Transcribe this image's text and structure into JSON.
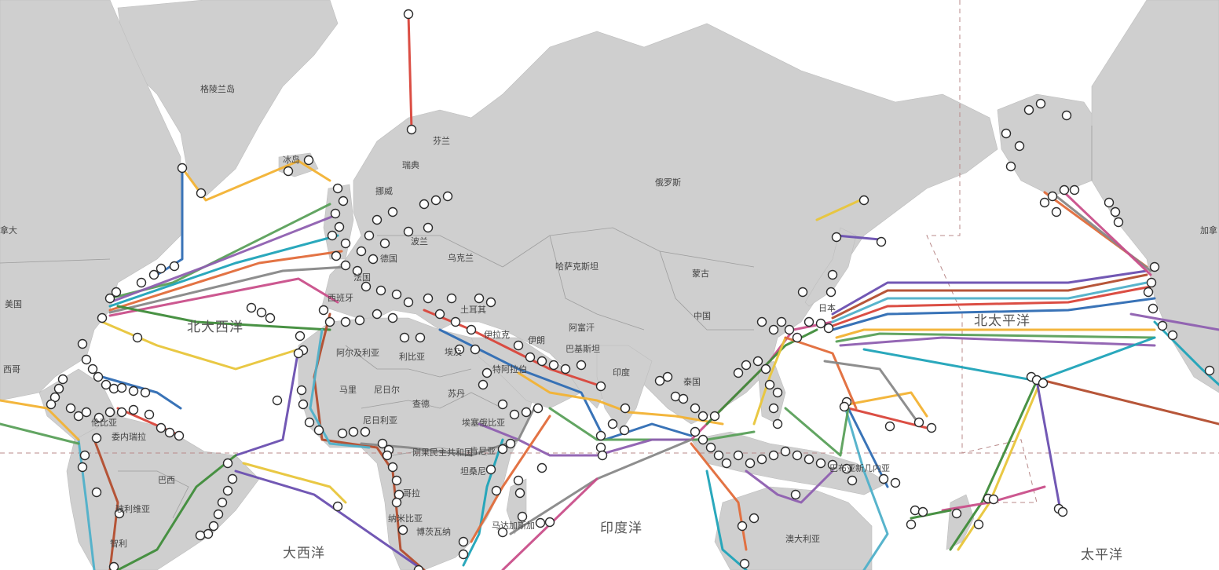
{
  "countries": {
    "greenland": "格陵兰岛",
    "canada_left": "拿大",
    "canada_right": "加拿",
    "usa": "美国",
    "mexico": "西哥",
    "iceland": "冰岛",
    "norway": "挪威",
    "sweden": "瑞典",
    "finland": "芬兰",
    "poland": "波兰",
    "germany": "德国",
    "france": "法国",
    "spain": "西班牙",
    "ukraine": "乌克兰",
    "turkey": "土耳其",
    "russia": "俄罗斯",
    "kazakhstan": "哈萨克斯坦",
    "mongolia": "蒙古",
    "china": "中国",
    "japan": "日本",
    "iran": "伊朗",
    "iraq": "伊拉克",
    "afghanistan": "阿富汗",
    "pakistan": "巴基斯坦",
    "india": "印度",
    "thailand": "泰国",
    "saudi": "特阿拉伯",
    "algeria": "阿尔及利亚",
    "libya": "利比亚",
    "egypt": "埃及",
    "mali": "马里",
    "niger": "尼日尔",
    "chad": "查德",
    "sudan": "苏丹",
    "nigeria": "尼日利亚",
    "ethiopia": "埃塞俄比亚",
    "drc": "刚果民主共和国",
    "kenya": "肯尼亚",
    "tanzania": "坦桑尼",
    "angola": "哥拉",
    "namibia": "纳米比亚",
    "botswana": "博茨瓦纳",
    "madagascar": "马达加斯加",
    "colombia": "伦比亚",
    "venezuela": "委内瑞拉",
    "brazil": "巴西",
    "bolivia": "玻利维亚",
    "chile": "智利",
    "png": "巴布亚新几内亚",
    "australia": "澳大利亚"
  },
  "oceans": {
    "north_atlantic": "北大西洋",
    "atlantic": "大西洋",
    "indian": "印度洋",
    "north_pacific": "北太平洋",
    "pacific": "太平洋"
  },
  "cable_colors": [
    "#d9443a",
    "#2e6bb3",
    "#f2b233",
    "#5aa05a",
    "#8e5fb0",
    "#1fa3b8",
    "#e26c3a",
    "#888888",
    "#c94f8a",
    "#3f8c3a",
    "#e8c53a",
    "#6a4fb0",
    "#b34d2e",
    "#4fb0c9"
  ]
}
